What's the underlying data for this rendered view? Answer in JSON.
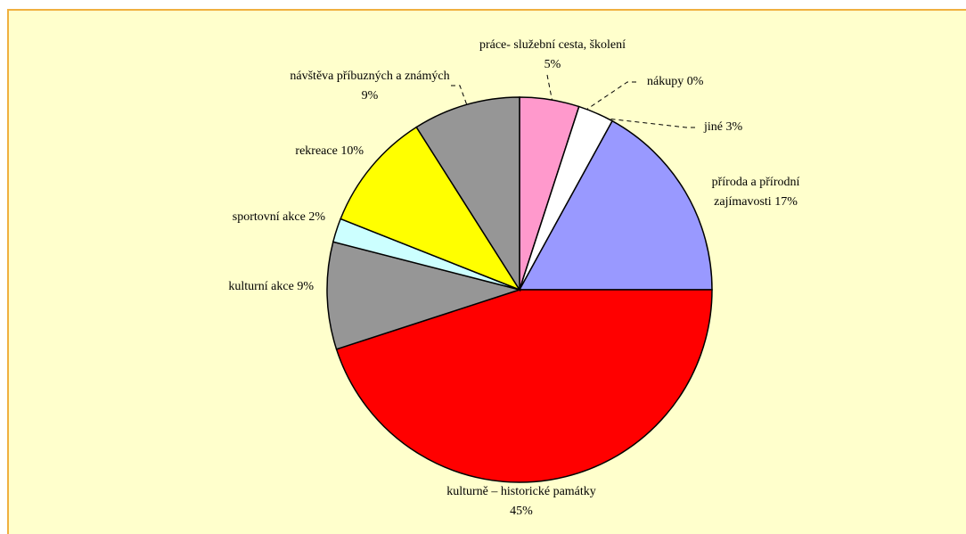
{
  "chart_data": {
    "type": "pie",
    "categories": [
      "práce- služební cesta, školení",
      "nákupy",
      "jiné",
      "příroda a přírodní zajímavosti",
      "kulturně – historické památky",
      "kulturní akce",
      "sportovní akce",
      "rekreace",
      "návštěva příbuzných a známých"
    ],
    "values": [
      5,
      0,
      3,
      17,
      45,
      9,
      2,
      10,
      9
    ],
    "value_labels": [
      "5%",
      "0%",
      "3%",
      "17%",
      "45%",
      "9%",
      "2%",
      "10%",
      "9%"
    ],
    "colors": [
      "#ff99cc",
      "#ffffff",
      "#ffffff",
      "#9999ff",
      "#ff0000",
      "#969696",
      "#ccffff",
      "#ffff00",
      "#969696"
    ]
  }
}
